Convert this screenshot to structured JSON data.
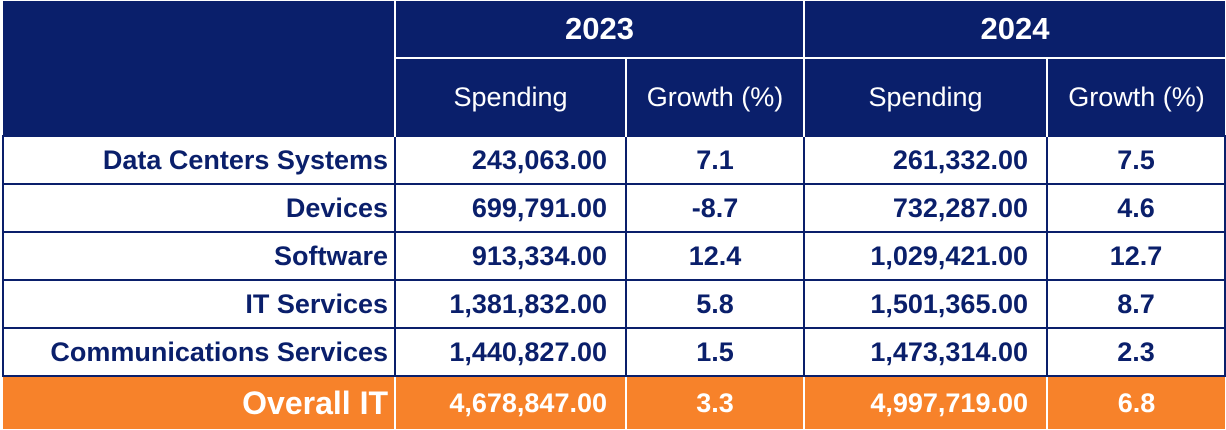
{
  "header": {
    "years": [
      "2023",
      "2024"
    ],
    "subheaders": [
      "Spending",
      "Growth (%)",
      "Spending",
      "Growth (%)"
    ]
  },
  "rows": [
    {
      "label": "Data Centers Systems",
      "spend_2023": "243,063.00",
      "growth_2023": "7.1",
      "spend_2024": "261,332.00",
      "growth_2024": "7.5"
    },
    {
      "label": "Devices",
      "spend_2023": "699,791.00",
      "growth_2023": "-8.7",
      "spend_2024": "732,287.00",
      "growth_2024": "4.6"
    },
    {
      "label": "Software",
      "spend_2023": "913,334.00",
      "growth_2023": "12.4",
      "spend_2024": "1,029,421.00",
      "growth_2024": "12.7"
    },
    {
      "label": "IT Services",
      "spend_2023": "1,381,832.00",
      "growth_2023": "5.8",
      "spend_2024": "1,501,365.00",
      "growth_2024": "8.7"
    },
    {
      "label": "Communications Services",
      "spend_2023": "1,440,827.00",
      "growth_2023": "1.5",
      "spend_2024": "1,473,314.00",
      "growth_2024": "2.3"
    }
  ],
  "total": {
    "label": "Overall IT",
    "spend_2023": "4,678,847.00",
    "growth_2023": "3.3",
    "spend_2024": "4,997,719.00",
    "growth_2024": "6.8"
  },
  "colors": {
    "header_bg": "#0a1f6b",
    "text": "#0a1f6b",
    "total_bg": "#f7822a",
    "total_text": "#ffffff"
  }
}
